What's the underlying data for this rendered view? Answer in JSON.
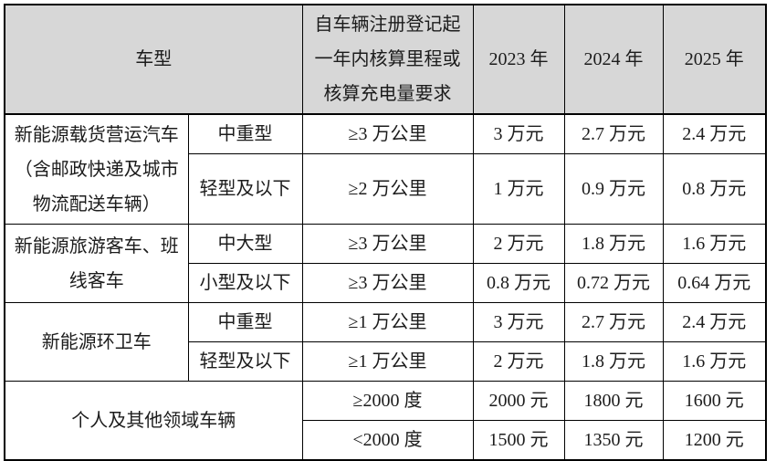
{
  "colors": {
    "page_background": "#ffffff",
    "header_background": "#d7d7d7",
    "border": "#000000",
    "text": "#1c1c1c"
  },
  "table": {
    "header": {
      "vehicle": "车型",
      "requirement": "自车辆注册登记起一年内核算里程或核算充电量要求",
      "y2023": "2023 年",
      "y2024": "2024 年",
      "y2025": "2025 年"
    },
    "groups": [
      {
        "category": "新能源载货营运汽车（含邮政快递及城市物流配送车辆）",
        "rows": [
          {
            "subtype": "中重型",
            "requirement": "≥3 万公里",
            "y2023": "3 万元",
            "y2024": "2.7 万元",
            "y2025": "2.4 万元"
          },
          {
            "subtype": "轻型及以下",
            "requirement": "≥2 万公里",
            "y2023": "1 万元",
            "y2024": "0.9 万元",
            "y2025": "0.8 万元"
          }
        ]
      },
      {
        "category": "新能源旅游客车、班线客车",
        "rows": [
          {
            "subtype": "中大型",
            "requirement": "≥3 万公里",
            "y2023": "2 万元",
            "y2024": "1.8 万元",
            "y2025": "1.6 万元"
          },
          {
            "subtype": "小型及以下",
            "requirement": "≥3 万公里",
            "y2023": "0.8 万元",
            "y2024": "0.72 万元",
            "y2025": "0.64 万元"
          }
        ]
      },
      {
        "category": "新能源环卫车",
        "rows": [
          {
            "subtype": "中重型",
            "requirement": "≥1 万公里",
            "y2023": "3 万元",
            "y2024": "2.7 万元",
            "y2025": "2.4 万元"
          },
          {
            "subtype": "轻型及以下",
            "requirement": "≥1 万公里",
            "y2023": "2 万元",
            "y2024": "1.8 万元",
            "y2025": "1.6 万元"
          }
        ]
      },
      {
        "category": "个人及其他领域车辆",
        "rows": [
          {
            "requirement": "≥2000 度",
            "y2023": "2000 元",
            "y2024": "1800 元",
            "y2025": "1600 元"
          },
          {
            "requirement": "<2000 度",
            "y2023": "1500 元",
            "y2024": "1350 元",
            "y2025": "1200 元"
          }
        ]
      }
    ]
  }
}
